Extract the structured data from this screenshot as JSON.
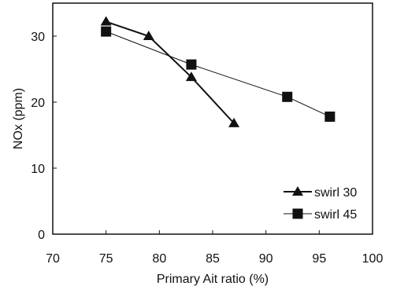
{
  "chart_data": {
    "type": "line",
    "xlabel": "Primary Ait ratio (%)",
    "ylabel": "NOx (ppm)",
    "xlim": [
      70,
      100
    ],
    "ylim": [
      0,
      35
    ],
    "x_ticks": [
      "70",
      "75",
      "80",
      "85",
      "90",
      "95",
      "100"
    ],
    "y_ticks": [
      "0",
      "10",
      "20",
      "30"
    ],
    "grid": false,
    "legend_position": "bottom-right",
    "series": [
      {
        "name": "swirl 30",
        "marker": "triangle",
        "points": [
          [
            75,
            32.2
          ],
          [
            79,
            30.0
          ],
          [
            83,
            23.8
          ],
          [
            87,
            16.8
          ]
        ]
      },
      {
        "name": "swirl 45",
        "marker": "square",
        "points": [
          [
            75,
            30.7
          ],
          [
            83,
            25.7
          ],
          [
            92,
            20.8
          ],
          [
            96,
            17.8
          ]
        ]
      }
    ],
    "colors": {
      "axis": "#111111",
      "series": "#111111",
      "background": "#ffffff"
    }
  }
}
